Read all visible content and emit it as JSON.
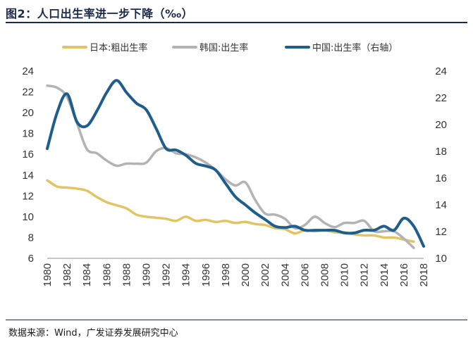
{
  "figure": {
    "title": "图2：人口出生率进一步下降（‰）",
    "source": "数据来源：Wind，广发证券发展研究中心"
  },
  "chart_data": {
    "type": "line",
    "title": "图2：人口出生率进一步下降（‰）",
    "x_tick_labels": [
      "1980",
      "1982",
      "1984",
      "1986",
      "1988",
      "1990",
      "1992",
      "1994",
      "1996",
      "1998",
      "2000",
      "2002",
      "2004",
      "2006",
      "2008",
      "2010",
      "2012",
      "2014",
      "2016",
      "2018"
    ],
    "xlim": [
      1980,
      2018
    ],
    "y_left": {
      "lim": [
        6,
        24
      ],
      "ticks": [
        "6",
        "8",
        "10",
        "12",
        "14",
        "16",
        "18",
        "20",
        "22",
        "24"
      ]
    },
    "y_right": {
      "lim": [
        10,
        24
      ],
      "ticks": [
        "10",
        "12",
        "14",
        "16",
        "18",
        "20",
        "22",
        "24"
      ]
    },
    "legend_position": "top",
    "series": [
      {
        "name": "日本:粗出生率",
        "axis": "left",
        "color": "#e3c463",
        "x": [
          1980,
          1981,
          1982,
          1983,
          1984,
          1985,
          1986,
          1987,
          1988,
          1989,
          1990,
          1991,
          1992,
          1993,
          1994,
          1995,
          1996,
          1997,
          1998,
          1999,
          2000,
          2001,
          2002,
          2003,
          2004,
          2005,
          2006,
          2007,
          2008,
          2009,
          2010,
          2011,
          2012,
          2013,
          2014,
          2015,
          2016,
          2017
        ],
        "values": [
          13.5,
          12.9,
          12.8,
          12.7,
          12.5,
          11.9,
          11.4,
          11.1,
          10.8,
          10.2,
          10.0,
          9.9,
          9.8,
          9.6,
          10.0,
          9.6,
          9.7,
          9.5,
          9.6,
          9.4,
          9.5,
          9.3,
          9.2,
          8.9,
          8.8,
          8.4,
          8.7,
          8.6,
          8.7,
          8.5,
          8.5,
          8.3,
          8.2,
          8.2,
          8.0,
          8.0,
          7.8,
          7.6
        ]
      },
      {
        "name": "韩国:出生率",
        "axis": "left",
        "color": "#b3b3b3",
        "x": [
          1980,
          1981,
          1982,
          1983,
          1984,
          1985,
          1986,
          1987,
          1988,
          1989,
          1990,
          1991,
          1992,
          1993,
          1994,
          1995,
          1996,
          1997,
          1998,
          1999,
          2000,
          2001,
          2002,
          2003,
          2004,
          2005,
          2006,
          2007,
          2008,
          2009,
          2010,
          2011,
          2012,
          2013,
          2014,
          2015,
          2016,
          2017
        ],
        "values": [
          22.6,
          22.4,
          21.5,
          19.0,
          16.5,
          16.1,
          15.4,
          14.9,
          15.1,
          15.1,
          15.2,
          16.3,
          16.6,
          16.1,
          16.0,
          15.7,
          15.2,
          14.5,
          13.6,
          13.0,
          13.3,
          11.6,
          10.3,
          10.2,
          9.8,
          8.9,
          9.2,
          10.0,
          9.4,
          9.0,
          9.4,
          9.4,
          9.6,
          8.6,
          8.6,
          8.6,
          7.9,
          7.0
        ]
      },
      {
        "name": "中国:出生率（右轴）",
        "axis": "right",
        "color": "#1e5d8c",
        "x": [
          1980,
          1981,
          1982,
          1983,
          1984,
          1985,
          1986,
          1987,
          1988,
          1989,
          1990,
          1991,
          1992,
          1993,
          1994,
          1995,
          1996,
          1997,
          1998,
          1999,
          2000,
          2001,
          2002,
          2003,
          2004,
          2005,
          2006,
          2007,
          2008,
          2009,
          2010,
          2011,
          2012,
          2013,
          2014,
          2015,
          2016,
          2017,
          2018
        ],
        "values": [
          18.2,
          20.9,
          22.3,
          20.2,
          19.9,
          21.0,
          22.4,
          23.3,
          22.4,
          21.6,
          21.1,
          19.7,
          18.2,
          18.1,
          17.7,
          17.1,
          16.9,
          16.6,
          15.6,
          14.6,
          14.0,
          13.4,
          12.9,
          12.4,
          12.3,
          12.4,
          12.1,
          12.1,
          12.1,
          12.1,
          11.9,
          11.9,
          12.1,
          12.1,
          12.4,
          12.1,
          13.0,
          12.4,
          10.9
        ]
      }
    ]
  }
}
